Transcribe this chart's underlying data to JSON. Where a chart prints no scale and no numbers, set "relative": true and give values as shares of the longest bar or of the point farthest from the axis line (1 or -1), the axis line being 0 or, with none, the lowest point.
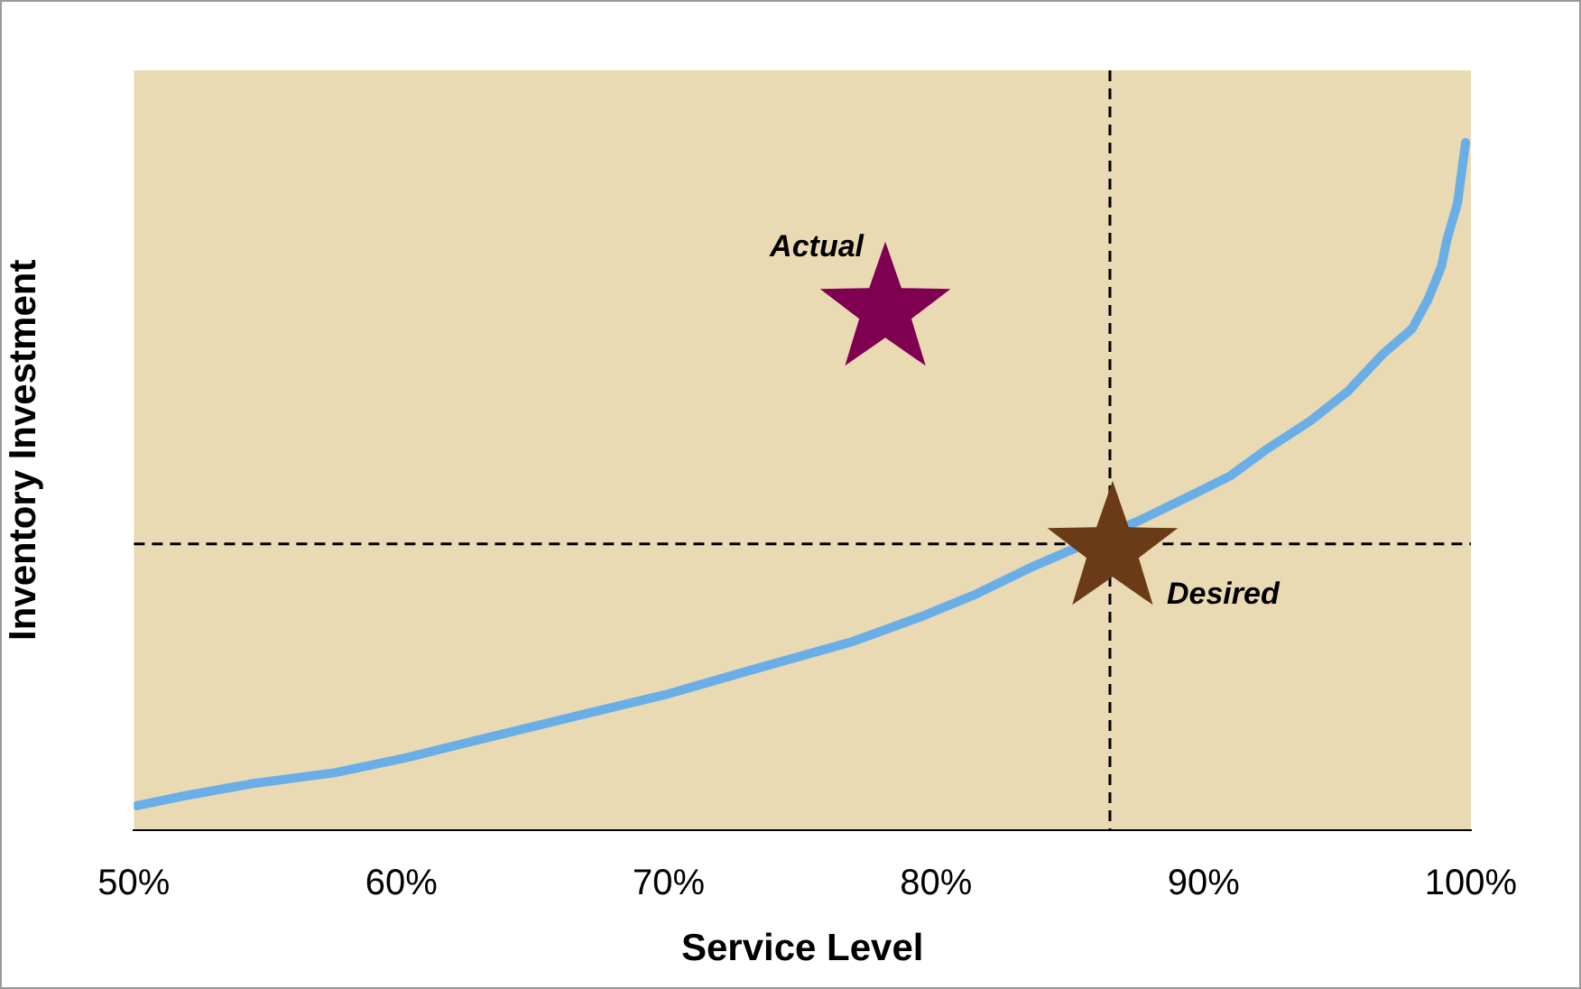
{
  "chart_data": {
    "type": "line",
    "relative": true,
    "xlabel": "Service Level",
    "ylabel": "Inventory Investment",
    "xlim": [
      50,
      100
    ],
    "xticks": [
      {
        "value": 50,
        "label": "50%"
      },
      {
        "value": 60,
        "label": "60%"
      },
      {
        "value": 70,
        "label": "70%"
      },
      {
        "value": 80,
        "label": "80%"
      },
      {
        "value": 90,
        "label": "90%"
      },
      {
        "value": 100,
        "label": "100%"
      }
    ],
    "series": [
      {
        "color": "#6aaee8",
        "marker": "none",
        "x": [
          50.1,
          51.7,
          54.4,
          57.5,
          60.2,
          63.2,
          66.6,
          70.0,
          73.4,
          76.8,
          79.5,
          81.5,
          83.5,
          87.6,
          89.6,
          91.0,
          92.3,
          94.0,
          95.4,
          96.7,
          97.8,
          98.4,
          98.9,
          99.1,
          99.5,
          99.8
        ],
        "values": [
          0.035,
          0.048,
          0.067,
          0.083,
          0.105,
          0.134,
          0.166,
          0.198,
          0.236,
          0.273,
          0.311,
          0.343,
          0.381,
          0.45,
          0.488,
          0.515,
          0.552,
          0.595,
          0.638,
          0.692,
          0.729,
          0.772,
          0.82,
          0.858,
          0.912,
          1.0
        ]
      },
      {
        "type": "scatter",
        "color": "#7f0050",
        "marker": "star",
        "x": [
          78.1
        ],
        "values": [
          0.756
        ]
      },
      {
        "type": "scatter",
        "color": "#6b3a17",
        "marker": "star",
        "x": [
          86.6
        ],
        "values": [
          0.408
        ]
      }
    ],
    "ref_lines": [
      {
        "axis": "x",
        "value": 86.5,
        "color": "#000000",
        "line_style": "dashed"
      },
      {
        "axis": "y",
        "value": 0.416,
        "color": "#000000",
        "line_style": "dashed"
      }
    ],
    "annotations": [
      {
        "text": "Actual",
        "x": 78.1,
        "y": 0.756
      },
      {
        "text": "Desired",
        "x": 86.6,
        "y": 0.408
      }
    ],
    "grid": false,
    "legend": false
  }
}
